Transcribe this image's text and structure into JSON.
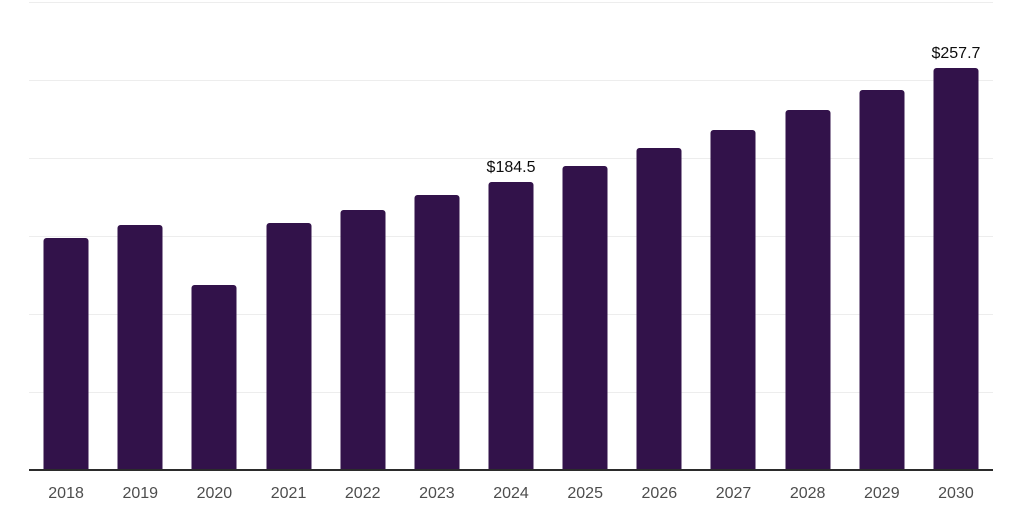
{
  "chart_data": {
    "type": "bar",
    "title": "",
    "xlabel": "",
    "ylabel": "",
    "categories": [
      "2018",
      "2019",
      "2020",
      "2021",
      "2022",
      "2023",
      "2024",
      "2025",
      "2026",
      "2027",
      "2028",
      "2029",
      "2030"
    ],
    "values": [
      148.6,
      157.1,
      118.6,
      158.3,
      166.5,
      176.0,
      184.5,
      195.1,
      206.2,
      218.0,
      230.5,
      243.7,
      257.7
    ],
    "value_labels": {
      "2024": "$184.5",
      "2030": "$257.7"
    },
    "ylim": [
      0,
      300
    ],
    "gridline_step": 50,
    "grid": true,
    "legend": false,
    "y_tick_labels_visible": false
  },
  "colors": {
    "background": "#ffffff",
    "bar": "#32124A",
    "gridline": "#EDEDED",
    "axis_line": "#2B2B2B",
    "tick_label": "#4D4D4D",
    "value_label": "#0D0D0D"
  }
}
